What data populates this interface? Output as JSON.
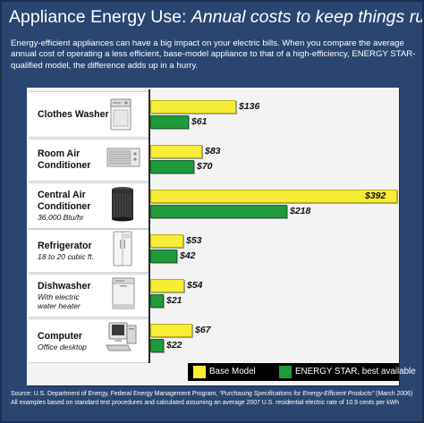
{
  "title": {
    "main": "Appliance Energy Use:",
    "italic": "Annual costs to keep things running"
  },
  "intro": "Energy-efficient appliances can have a big impact on your electric bills. When you compare the average annual cost of operating a less efficient, base-model appliance to that of a high-efficiency, ENERGY STAR-qualified model, the difference adds up in a hurry.",
  "chart_data": {
    "type": "bar",
    "orientation": "horizontal",
    "categories": [
      "Clothes Washer",
      "Room Air Conditioner",
      "Central Air Conditioner",
      "Refrigerator",
      "Dishwasher",
      "Computer"
    ],
    "category_subtitles": [
      "",
      "",
      "36,000 Btu/hr",
      "18 to 20 cubic ft.",
      "With electric water heater",
      "Office desktop"
    ],
    "series": [
      {
        "name": "Base Model",
        "color": "#f7ec36",
        "values": [
          136,
          83,
          392,
          53,
          54,
          67
        ],
        "labels": [
          "$136",
          "$83",
          "$392",
          "$53",
          "$54",
          "$67"
        ]
      },
      {
        "name": "ENERGY STAR, best available",
        "color": "#1f9a3c",
        "values": [
          61,
          70,
          218,
          42,
          21,
          22
        ],
        "labels": [
          "$61",
          "$70",
          "$218",
          "$42",
          "$21",
          "$22"
        ]
      }
    ],
    "xlim": [
      0,
      392
    ],
    "legend_position": "bottom-right",
    "grid": false
  },
  "rows": [
    {
      "name": "Clothes Washer",
      "sub": "",
      "icon": "washing-machine-icon"
    },
    {
      "name": "Room Air\nConditioner",
      "sub": "",
      "icon": "window-air-conditioner-icon"
    },
    {
      "name": "Central Air\nConditioner",
      "sub": "36,000 Btu/hr",
      "icon": "central-air-conditioner-icon"
    },
    {
      "name": "Refrigerator",
      "sub": "18 to 20 cubic ft.",
      "icon": "refrigerator-icon"
    },
    {
      "name": "Dishwasher",
      "sub": "With electric\nwater heater",
      "icon": "dishwasher-icon"
    },
    {
      "name": "Computer",
      "sub": "Office desktop",
      "icon": "desktop-computer-icon"
    }
  ],
  "legend": {
    "base": "Base Model",
    "star": "ENERGY STAR, best available"
  },
  "source": {
    "prefix": "Source: U.S. Department of Energy, Federal Energy Management Program, ",
    "italic": "“Purchasing Specifications for Energy-Efficient Products”",
    "suffix": " (March 2006)",
    "line2": "All examples based on standard test procedures and calculated assuming an average 2007 U.S. residential electric rate of 10.9 cents per kWh"
  }
}
